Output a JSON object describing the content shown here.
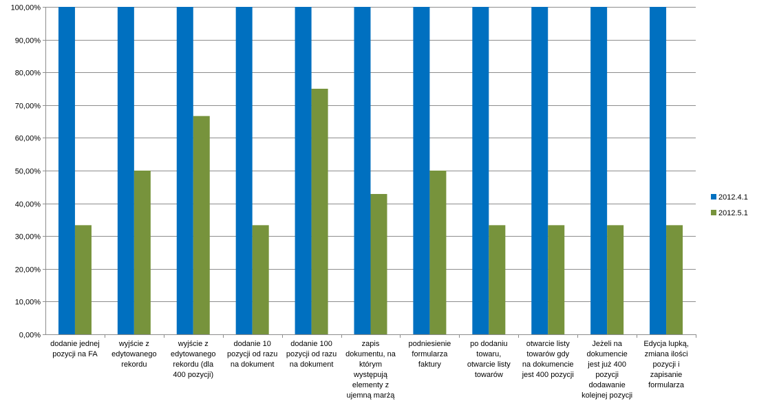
{
  "chart_data": {
    "type": "bar",
    "title": "",
    "xlabel": "",
    "ylabel": "",
    "ylim": [
      0,
      100
    ],
    "y_ticks": [
      "0,00%",
      "10,00%",
      "20,00%",
      "30,00%",
      "40,00%",
      "50,00%",
      "60,00%",
      "70,00%",
      "80,00%",
      "90,00%",
      "100,00%"
    ],
    "grid": true,
    "legend_position": "right",
    "categories": [
      [
        "dodanie jednej",
        "pozycji na FA"
      ],
      [
        "wyjście z",
        "edytowanego",
        "rekordu"
      ],
      [
        "wyjście z",
        "edytowanego",
        "rekordu (dla",
        "400 pozycji)"
      ],
      [
        "dodanie 10",
        "pozycji od razu",
        "na dokument"
      ],
      [
        "dodanie 100",
        "pozycji od razu",
        "na dokument"
      ],
      [
        "zapis",
        "dokumentu, na",
        "którym",
        "występują",
        "elementy z",
        "ujemną marżą"
      ],
      [
        "podniesienie",
        "formularza",
        "faktury"
      ],
      [
        "po dodaniu",
        "towaru,",
        "otwarcie listy",
        "towarów"
      ],
      [
        "otwarcie listy",
        "towarów gdy",
        "na dokumencie",
        "jest 400 pozycji"
      ],
      [
        "Jeżeli na",
        "dokumencie",
        "jest już 400",
        "pozycji",
        "dodawanie",
        "kolejnej pozycji"
      ],
      [
        "Edycja lupką,",
        "zmiana ilości",
        "pozycji i",
        "zapisanie",
        "formularza"
      ]
    ],
    "series": [
      {
        "name": "2012.4.1",
        "color": "#0070c0",
        "values": [
          100,
          100,
          100,
          100,
          100,
          100,
          100,
          100,
          100,
          100,
          100
        ]
      },
      {
        "name": "2012.5.1",
        "color": "#77933c",
        "values": [
          33.33,
          50,
          66.67,
          33.33,
          75,
          42.86,
          50,
          33.33,
          33.33,
          33.33,
          33.33
        ]
      }
    ]
  }
}
